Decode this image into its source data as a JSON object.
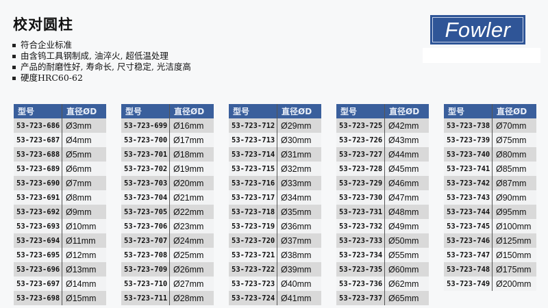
{
  "title": "校对圆柱",
  "bullets": [
    "符合企业标准",
    "由含钨工具钢制成, 油淬火, 超低温处理",
    "产品的耐磨性好, 寿命长, 尺寸稳定, 光洁度高",
    "硬度HRC60-62"
  ],
  "logo": {
    "text": "Fowler",
    "color": "#2f5597"
  },
  "table_header": {
    "model": "型号",
    "diameter": "直径ØD",
    "color": "#3a5f9c"
  },
  "tables": [
    {
      "rows": [
        [
          "53-723-686",
          "Ø3mm"
        ],
        [
          "53-723-687",
          "Ø4mm"
        ],
        [
          "53-723-688",
          "Ø5mm"
        ],
        [
          "53-723-689",
          "Ø6mm"
        ],
        [
          "53-723-690",
          "Ø7mm"
        ],
        [
          "53-723-691",
          "Ø8mm"
        ],
        [
          "53-723-692",
          "Ø9mm"
        ],
        [
          "53-723-693",
          "Ø10mm"
        ],
        [
          "53-723-694",
          "Ø11mm"
        ],
        [
          "53-723-695",
          "Ø12mm"
        ],
        [
          "53-723-696",
          "Ø13mm"
        ],
        [
          "53-723-697",
          "Ø14mm"
        ],
        [
          "53-723-698",
          "Ø15mm"
        ]
      ]
    },
    {
      "rows": [
        [
          "53-723-699",
          "Ø16mm"
        ],
        [
          "53-723-700",
          "Ø17mm"
        ],
        [
          "53-723-701",
          "Ø18mm"
        ],
        [
          "53-723-702",
          "Ø19mm"
        ],
        [
          "53-723-703",
          "Ø20mm"
        ],
        [
          "53-723-704",
          "Ø21mm"
        ],
        [
          "53-723-705",
          "Ø22mm"
        ],
        [
          "53-723-706",
          "Ø23mm"
        ],
        [
          "53-723-707",
          "Ø24mm"
        ],
        [
          "53-723-708",
          "Ø25mm"
        ],
        [
          "53-723-709",
          "Ø26mm"
        ],
        [
          "53-723-710",
          "Ø27mm"
        ],
        [
          "53-723-711",
          "Ø28mm"
        ]
      ]
    },
    {
      "rows": [
        [
          "53-723-712",
          "Ø29mm"
        ],
        [
          "53-723-713",
          "Ø30mm"
        ],
        [
          "53-723-714",
          "Ø31mm"
        ],
        [
          "53-723-715",
          "Ø32mm"
        ],
        [
          "53-723-716",
          "Ø33mm"
        ],
        [
          "53-723-717",
          "Ø34mm"
        ],
        [
          "53-723-718",
          "Ø35mm"
        ],
        [
          "53-723-719",
          "Ø36mm"
        ],
        [
          "53-723-720",
          "Ø37mm"
        ],
        [
          "53-723-721",
          "Ø38mm"
        ],
        [
          "53-723-722",
          "Ø39mm"
        ],
        [
          "53-723-723",
          "Ø40mm"
        ],
        [
          "53-723-724",
          "Ø41mm"
        ]
      ]
    },
    {
      "rows": [
        [
          "53-723-725",
          "Ø42mm"
        ],
        [
          "53-723-726",
          "Ø43mm"
        ],
        [
          "53-723-727",
          "Ø44mm"
        ],
        [
          "53-723-728",
          "Ø45mm"
        ],
        [
          "53-723-729",
          "Ø46mm"
        ],
        [
          "53-723-730",
          "Ø47mm"
        ],
        [
          "53-723-731",
          "Ø48mm"
        ],
        [
          "53-723-732",
          "Ø49mm"
        ],
        [
          "53-723-733",
          "Ø50mm"
        ],
        [
          "53-723-734",
          "Ø55mm"
        ],
        [
          "53-723-735",
          "Ø60mm"
        ],
        [
          "53-723-736",
          "Ø62mm"
        ],
        [
          "53-723-737",
          "Ø65mm"
        ]
      ]
    },
    {
      "rows": [
        [
          "53-723-738",
          "Ø70mm"
        ],
        [
          "53-723-739",
          "Ø75mm"
        ],
        [
          "53-723-740",
          "Ø80mm"
        ],
        [
          "53-723-741",
          "Ø85mm"
        ],
        [
          "53-723-742",
          "Ø87mm"
        ],
        [
          "53-723-743",
          "Ø90mm"
        ],
        [
          "53-723-744",
          "Ø95mm"
        ],
        [
          "53-723-745",
          "Ø100mm"
        ],
        [
          "53-723-746",
          "Ø125mm"
        ],
        [
          "53-723-747",
          "Ø150mm"
        ],
        [
          "53-723-748",
          "Ø175mm"
        ],
        [
          "53-723-749",
          "Ø200mm"
        ]
      ]
    }
  ]
}
